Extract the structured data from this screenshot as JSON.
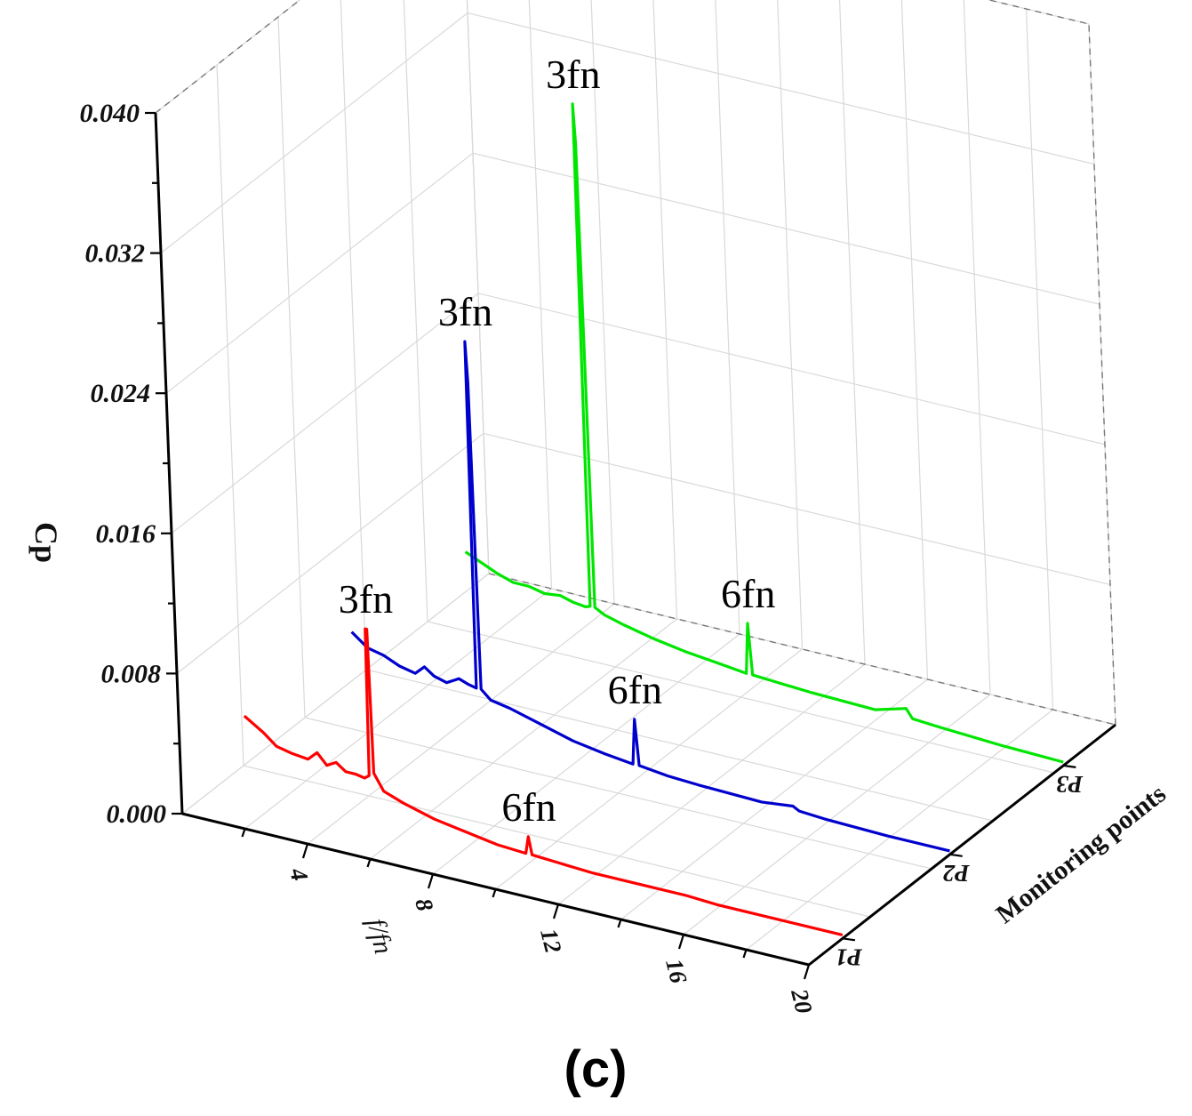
{
  "panel_label": "(c)",
  "chart_data": {
    "type": "line",
    "subtype": "3d-waterfall",
    "title": "",
    "xlabel": "f/fn",
    "ylabel": "Cp",
    "zlabel": "Monitoring points",
    "xlim": [
      0,
      20
    ],
    "ylim": [
      0,
      0.04
    ],
    "x_ticks": [
      "4",
      "8",
      "12",
      "16",
      "20"
    ],
    "y_ticks": [
      "0.000",
      "0.008",
      "0.016",
      "0.024",
      "0.032",
      "0.040"
    ],
    "z_categories": [
      "P1",
      "P2",
      "P3"
    ],
    "grid": true,
    "series": [
      {
        "name": "P1",
        "color": "#ff0000",
        "points": [
          [
            1.0,
            0.0045
          ],
          [
            1.6,
            0.0038
          ],
          [
            2.0,
            0.0032
          ],
          [
            2.5,
            0.003
          ],
          [
            3.0,
            0.0029
          ],
          [
            3.3,
            0.0034
          ],
          [
            3.6,
            0.0028
          ],
          [
            3.9,
            0.0031
          ],
          [
            4.2,
            0.0027
          ],
          [
            4.5,
            0.0027
          ],
          [
            4.8,
            0.0026
          ],
          [
            4.95,
            0.0028
          ],
          [
            5.0,
            0.0112
          ],
          [
            5.05,
            0.0112
          ],
          [
            5.1,
            0.003
          ],
          [
            5.4,
            0.0021
          ],
          [
            6.0,
            0.0017
          ],
          [
            7.0,
            0.0012
          ],
          [
            8.0,
            0.0009
          ],
          [
            9.0,
            0.0006
          ],
          [
            9.9,
            0.0005
          ],
          [
            10.0,
            0.0015
          ],
          [
            10.1,
            0.0005
          ],
          [
            11.0,
            0.0004
          ],
          [
            12.0,
            0.0003
          ],
          [
            14.0,
            0.0003
          ],
          [
            15.0,
            0.0003
          ],
          [
            16.0,
            0.0002
          ],
          [
            18.0,
            0.0002
          ],
          [
            20.0,
            0.0002
          ]
        ],
        "annotations": [
          {
            "text": "3fn",
            "x": 5.0,
            "y": 0.0112
          },
          {
            "text": "6fn",
            "x": 10.0,
            "y": 0.0015
          }
        ]
      },
      {
        "name": "P2",
        "color": "#0000cc",
        "points": [
          [
            1.0,
            0.0045
          ],
          [
            1.5,
            0.0038
          ],
          [
            2.0,
            0.0036
          ],
          [
            2.5,
            0.0032
          ],
          [
            3.0,
            0.003
          ],
          [
            3.3,
            0.0035
          ],
          [
            3.6,
            0.0031
          ],
          [
            4.0,
            0.0029
          ],
          [
            4.4,
            0.0033
          ],
          [
            4.7,
            0.0031
          ],
          [
            4.95,
            0.003
          ],
          [
            5.0,
            0.0228
          ],
          [
            5.05,
            0.0205
          ],
          [
            5.1,
            0.003
          ],
          [
            5.4,
            0.0025
          ],
          [
            6.0,
            0.0023
          ],
          [
            7.0,
            0.0018
          ],
          [
            8.0,
            0.0013
          ],
          [
            9.0,
            0.001
          ],
          [
            9.9,
            0.0008
          ],
          [
            10.0,
            0.0034
          ],
          [
            10.1,
            0.0008
          ],
          [
            11.0,
            0.0006
          ],
          [
            12.0,
            0.0005
          ],
          [
            14.0,
            0.0004
          ],
          [
            15.0,
            0.0006
          ],
          [
            15.2,
            0.0004
          ],
          [
            16.0,
            0.0003
          ],
          [
            18.0,
            0.0002
          ],
          [
            20.0,
            0.0002
          ]
        ],
        "annotations": [
          {
            "text": "3fn",
            "x": 5.0,
            "y": 0.0228
          },
          {
            "text": "6fn",
            "x": 10.0,
            "y": 0.0034
          }
        ]
      },
      {
        "name": "P3",
        "color": "#00e600",
        "points": [
          [
            1.0,
            0.004
          ],
          [
            1.5,
            0.0036
          ],
          [
            2.0,
            0.0032
          ],
          [
            2.5,
            0.0029
          ],
          [
            3.0,
            0.0029
          ],
          [
            3.5,
            0.0027
          ],
          [
            4.0,
            0.0028
          ],
          [
            4.4,
            0.0026
          ],
          [
            4.8,
            0.0025
          ],
          [
            4.95,
            0.0026
          ],
          [
            5.0,
            0.0313
          ],
          [
            5.05,
            0.029
          ],
          [
            5.1,
            0.0026
          ],
          [
            5.4,
            0.0023
          ],
          [
            6.0,
            0.002
          ],
          [
            7.0,
            0.0016
          ],
          [
            8.0,
            0.0013
          ],
          [
            9.0,
            0.0011
          ],
          [
            9.9,
            0.0009
          ],
          [
            10.0,
            0.0038
          ],
          [
            10.1,
            0.0009
          ],
          [
            11.0,
            0.0008
          ],
          [
            12.0,
            0.0007
          ],
          [
            14.0,
            0.0006
          ],
          [
            15.0,
            0.0011
          ],
          [
            15.2,
            0.0006
          ],
          [
            16.0,
            0.0005
          ],
          [
            18.0,
            0.0003
          ],
          [
            20.0,
            0.0002
          ]
        ],
        "annotations": [
          {
            "text": "3fn",
            "x": 5.0,
            "y": 0.0313
          },
          {
            "text": "6fn",
            "x": 10.0,
            "y": 0.0038
          }
        ]
      }
    ]
  }
}
